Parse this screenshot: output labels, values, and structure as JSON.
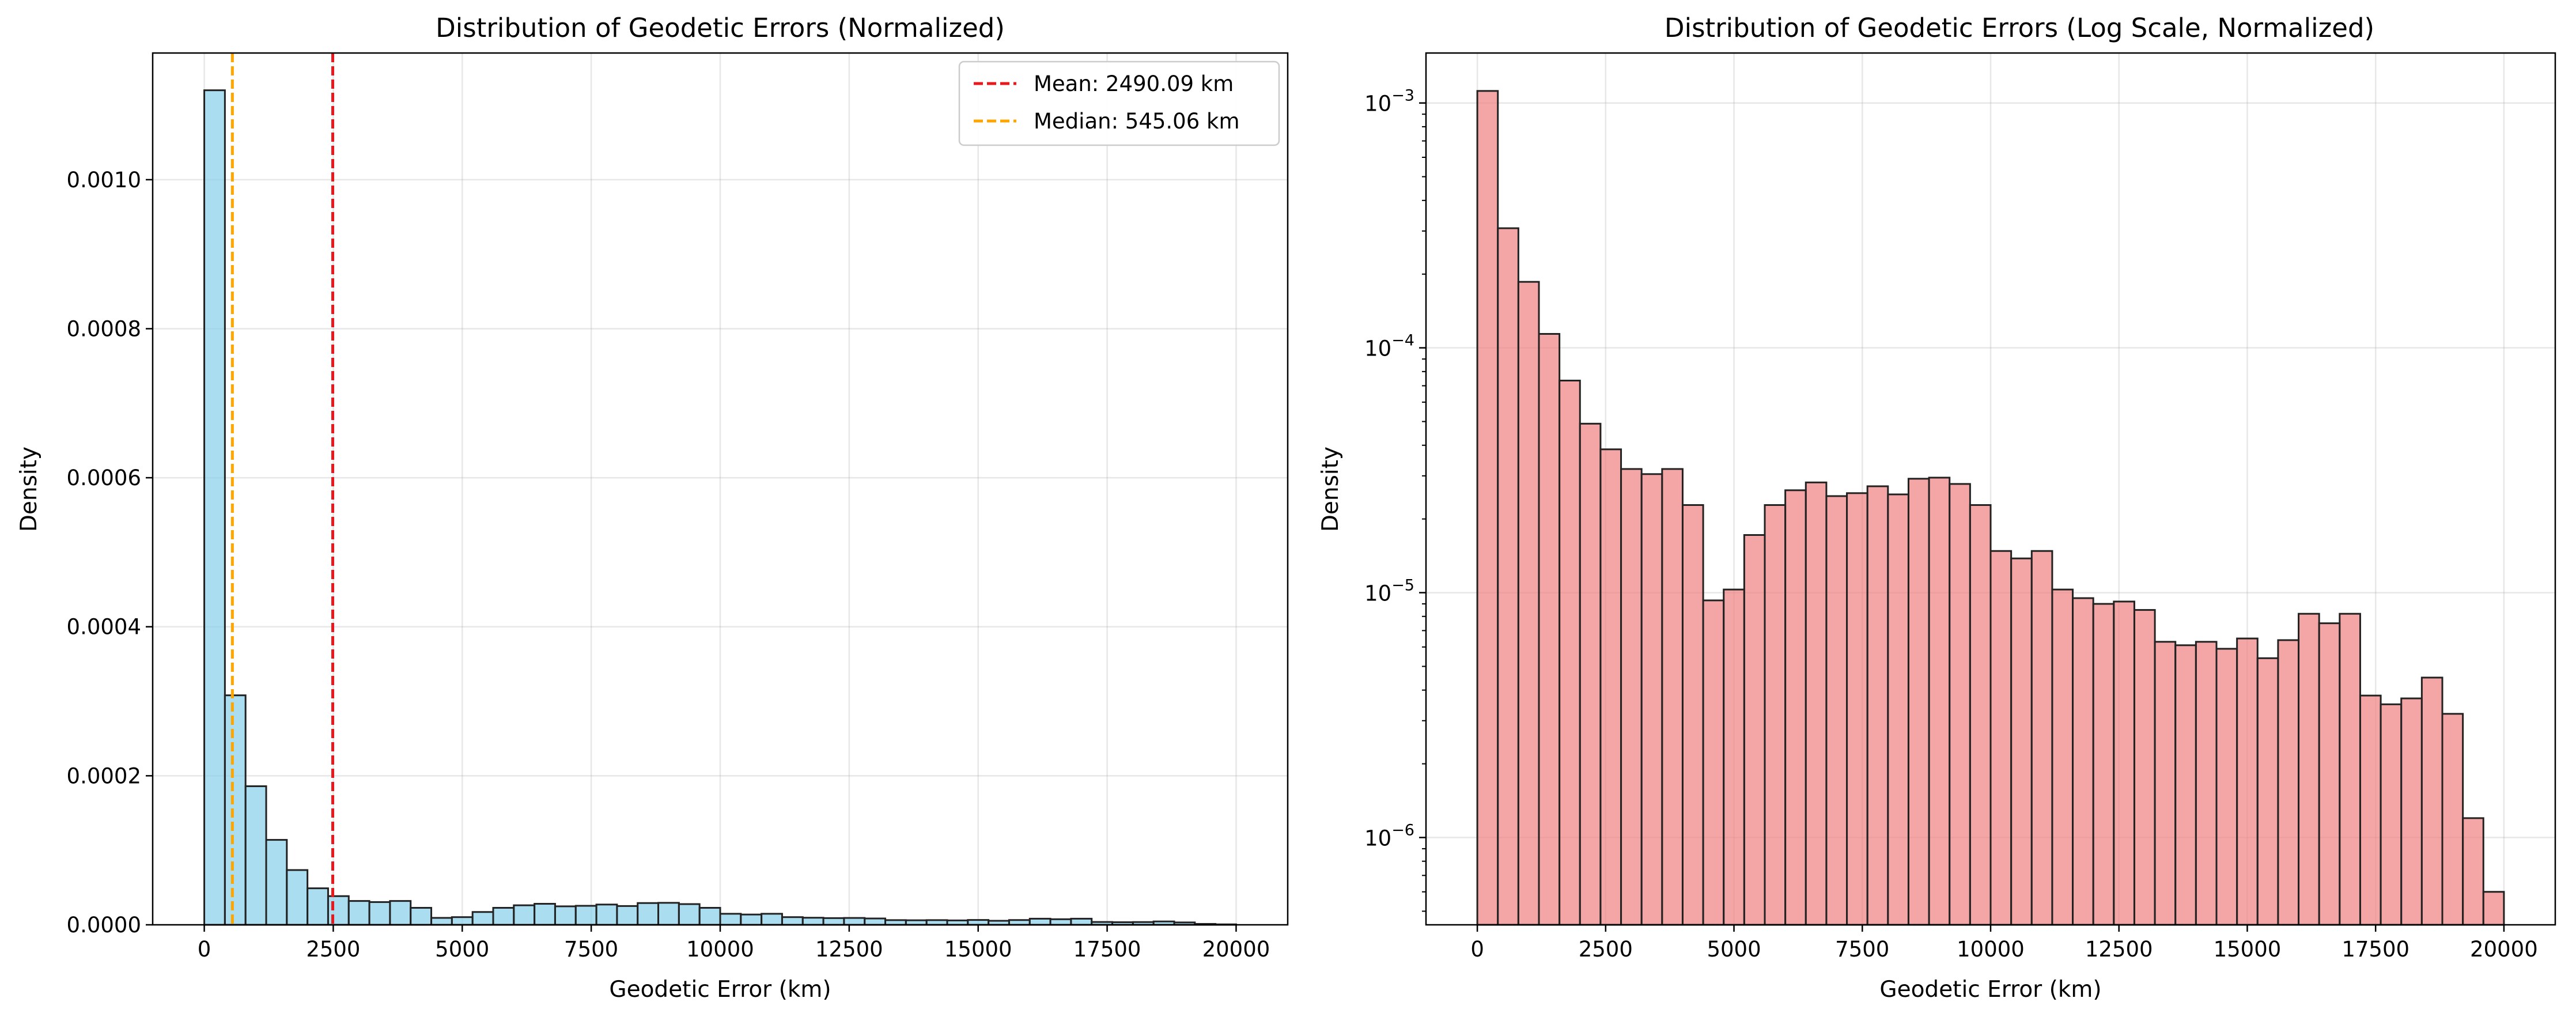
{
  "chart_data": [
    {
      "type": "bar",
      "title": "Distribution of Geodetic Errors (Normalized)",
      "xlabel": "Geodetic Error (km)",
      "ylabel": "Density",
      "xlim": [
        -1000,
        21000
      ],
      "ylim": [
        0,
        0.00117
      ],
      "y_scale": "linear",
      "grid": true,
      "bar_color": "#87CEEB",
      "edge_color": "#222222",
      "x_ticks": [
        0,
        2500,
        5000,
        7500,
        10000,
        12500,
        15000,
        17500,
        20000
      ],
      "x_tick_labels": [
        "0",
        "2500",
        "5000",
        "7500",
        "10000",
        "12500",
        "15000",
        "17500",
        "20000"
      ],
      "y_ticks": [
        0,
        0.0002,
        0.0004,
        0.0006,
        0.0008,
        0.001
      ],
      "y_tick_labels": [
        "0.0000",
        "0.0002",
        "0.0004",
        "0.0006",
        "0.0008",
        "0.0010"
      ],
      "bin_start": 0,
      "bin_end": 20000,
      "bin_count": 50,
      "values": [
        0.00112,
        0.000308,
        0.000186,
        0.000114,
        7.35e-05,
        4.9e-05,
        3.85e-05,
        3.2e-05,
        3.05e-05,
        3.2e-05,
        2.28e-05,
        9.3e-06,
        1.03e-05,
        1.72e-05,
        2.28e-05,
        2.62e-05,
        2.82e-05,
        2.48e-05,
        2.55e-05,
        2.72e-05,
        2.52e-05,
        2.92e-05,
        2.95e-05,
        2.78e-05,
        2.28e-05,
        1.48e-05,
        1.38e-05,
        1.48e-05,
        1.03e-05,
        9.5e-06,
        9e-06,
        9.2e-06,
        8.5e-06,
        6.3e-06,
        6.1e-06,
        6.3e-06,
        5.9e-06,
        6.5e-06,
        5.4e-06,
        6.4e-06,
        8.2e-06,
        7.5e-06,
        8.2e-06,
        3.8e-06,
        3.5e-06,
        3.7e-06,
        4.5e-06,
        3.2e-06,
        1.2e-06,
        6e-07
      ],
      "vlines": [
        {
          "name": "Mean: 2490.09 km",
          "x": 2490.09,
          "color": "#e8191c",
          "style": "dashed"
        },
        {
          "name": "Median: 545.06 km",
          "x": 545.06,
          "color": "#ffa500",
          "style": "dashed"
        }
      ],
      "legend_position": "top-right"
    },
    {
      "type": "bar",
      "title": "Distribution of Geodetic Errors (Log Scale, Normalized)",
      "xlabel": "Geodetic Error (km)",
      "ylabel": "Density",
      "xlim": [
        -1000,
        21000
      ],
      "ylim": [
        4.4e-07,
        0.0016
      ],
      "y_scale": "log",
      "grid": true,
      "bar_color": "#F08080",
      "edge_color": "#222222",
      "x_ticks": [
        0,
        2500,
        5000,
        7500,
        10000,
        12500,
        15000,
        17500,
        20000
      ],
      "x_tick_labels": [
        "0",
        "2500",
        "5000",
        "7500",
        "10000",
        "12500",
        "15000",
        "17500",
        "20000"
      ],
      "y_ticks": [
        1e-06,
        1e-05,
        0.0001,
        0.001
      ],
      "y_tick_bases": [
        "10",
        "10",
        "10",
        "10"
      ],
      "y_tick_exponents": [
        "−6",
        "−5",
        "−4",
        "−3"
      ],
      "bin_start": 0,
      "bin_end": 20000,
      "bin_count": 50,
      "values": [
        0.00112,
        0.000308,
        0.000186,
        0.000114,
        7.35e-05,
        4.9e-05,
        3.85e-05,
        3.2e-05,
        3.05e-05,
        3.2e-05,
        2.28e-05,
        9.3e-06,
        1.03e-05,
        1.72e-05,
        2.28e-05,
        2.62e-05,
        2.82e-05,
        2.48e-05,
        2.55e-05,
        2.72e-05,
        2.52e-05,
        2.92e-05,
        2.95e-05,
        2.78e-05,
        2.28e-05,
        1.48e-05,
        1.38e-05,
        1.48e-05,
        1.03e-05,
        9.5e-06,
        9e-06,
        9.2e-06,
        8.5e-06,
        6.3e-06,
        6.1e-06,
        6.3e-06,
        5.9e-06,
        6.5e-06,
        5.4e-06,
        6.4e-06,
        8.2e-06,
        7.5e-06,
        8.2e-06,
        3.8e-06,
        3.5e-06,
        3.7e-06,
        4.5e-06,
        3.2e-06,
        1.2e-06,
        6e-07
      ]
    }
  ]
}
